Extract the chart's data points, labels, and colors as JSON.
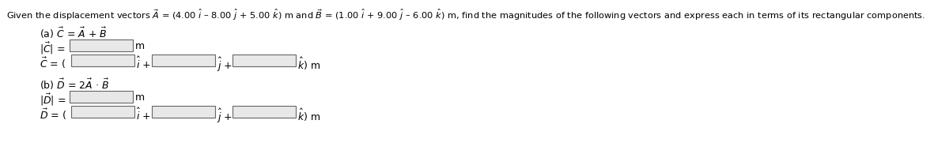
{
  "title": "Given the displacement vectors $\\vec{A}$ = (4.00 $\\hat{i}$ – 8.00 $\\hat{j}$ + 5.00 $\\hat{k}$) m and $\\vec{B}$ = (1.00 $\\hat{i}$ + 9.00 $\\hat{j}$ – 6.00 $\\hat{k}$) m, find the magnitudes of the following vectors and express each in terms of its rectangular components.",
  "bg_color": "#ffffff",
  "text_color": "#000000",
  "box_fill": "#e8e8e8",
  "box_edge": "#666666",
  "font_size_title": 8.2,
  "font_size_body": 9.0,
  "line1_a": "(a) $\\vec{C}$ = $\\vec{A}$ + $\\vec{B}$",
  "line2_a": "$|\\vec{C}|$ =",
  "line3_a": "$\\vec{C}$ = (",
  "line1_b": "(b) $\\vec{D}$ = 2$\\vec{A}$ · $\\vec{B}$",
  "line2_b": "$|\\vec{D}|$ =",
  "line3_b": "$\\vec{D}$ = (",
  "unit_m": "m",
  "suffix_i": "$\\hat{i}$ +",
  "suffix_j": "$\\hat{j}$ +",
  "suffix_k": "$\\hat{k}$) m",
  "fig_width": 12.0,
  "fig_height": 1.95,
  "dpi": 100
}
